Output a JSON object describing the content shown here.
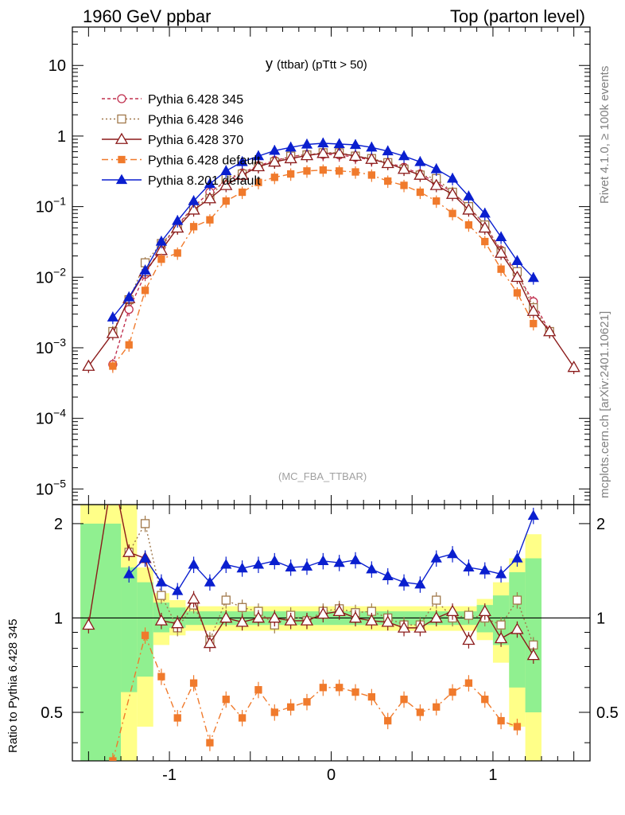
{
  "header": {
    "left": "1960 GeV ppbar",
    "right": "Top (parton level)"
  },
  "side_labels": {
    "rivet": "Rivet 4.1.0, ≥ 100k events",
    "mcplots": "mcplots.cern.ch [arXiv:2401.10621]"
  },
  "chart_data": {
    "type": "line",
    "title_main": "y",
    "title_sub": "(ttbar) (pTtt > 50)",
    "analysis": "(MC_FBA_TTBAR)",
    "ratio_ylabel": "Ratio to Pythia 6.428 345",
    "xlim": [
      -1.6,
      1.6
    ],
    "ylim_main": [
      6e-06,
      35
    ],
    "ylim_ratio": [
      0.35,
      2.3
    ],
    "x_ticks": [
      "-1",
      "0",
      "1"
    ],
    "y_ticks_main": [
      {
        "v": 10,
        "b": "10",
        "e": ""
      },
      {
        "v": 1,
        "b": "1",
        "e": ""
      },
      {
        "v": 0.1,
        "b": "10",
        "e": "−1"
      },
      {
        "v": 0.01,
        "b": "10",
        "e": "−2"
      },
      {
        "v": 0.001,
        "b": "10",
        "e": "−3"
      },
      {
        "v": 0.0001,
        "b": "10",
        "e": "−4"
      },
      {
        "v": 1e-05,
        "b": "10",
        "e": "−5"
      }
    ],
    "y_ticks_ratio": [
      "2",
      "1",
      "0.5"
    ],
    "x": [
      -1.5,
      -1.35,
      -1.25,
      -1.15,
      -1.05,
      -0.95,
      -0.85,
      -0.75,
      -0.65,
      -0.55,
      -0.45,
      -0.35,
      -0.25,
      -0.15,
      -0.05,
      0.05,
      0.15,
      0.25,
      0.35,
      0.45,
      0.55,
      0.65,
      0.75,
      0.85,
      0.95,
      1.05,
      1.15,
      1.25,
      1.35,
      1.5
    ],
    "band_yellow": [
      [
        -1.55,
        -1.3,
        0.35,
        2.3
      ],
      [
        -1.3,
        -1.2,
        0.35,
        2.3
      ],
      [
        -1.2,
        -1.1,
        0.45,
        1.45
      ],
      [
        -1.1,
        -1.0,
        0.82,
        1.2
      ],
      [
        -1.0,
        -0.9,
        0.88,
        1.14
      ],
      [
        -0.9,
        0.9,
        0.91,
        1.09
      ],
      [
        0.9,
        1.0,
        0.85,
        1.15
      ],
      [
        1.0,
        1.1,
        0.72,
        1.3
      ],
      [
        1.1,
        1.2,
        0.45,
        1.55
      ],
      [
        1.2,
        1.3,
        0.35,
        1.85
      ]
    ],
    "band_green": [
      [
        -1.55,
        -1.3,
        0.35,
        2.0
      ],
      [
        -1.3,
        -1.2,
        0.58,
        1.45
      ],
      [
        -1.2,
        -1.1,
        0.65,
        1.3
      ],
      [
        -1.1,
        -1.0,
        0.9,
        1.12
      ],
      [
        -1.0,
        -0.9,
        0.93,
        1.08
      ],
      [
        -0.9,
        0.9,
        0.95,
        1.05
      ],
      [
        0.9,
        1.0,
        0.9,
        1.1
      ],
      [
        1.0,
        1.1,
        0.82,
        1.18
      ],
      [
        1.1,
        1.2,
        0.6,
        1.4
      ],
      [
        1.2,
        1.3,
        0.5,
        1.55
      ]
    ],
    "series": [
      {
        "name": "Pythia 6.428 345",
        "color": "#c0304f",
        "dash": "4,3",
        "marker": "circle-open",
        "values": [
          null,
          0.00058,
          0.0035,
          0.011,
          0.027,
          0.055,
          0.1,
          0.16,
          0.23,
          0.3,
          0.38,
          0.45,
          0.51,
          0.55,
          0.55,
          0.54,
          0.5,
          0.46,
          0.42,
          0.36,
          0.29,
          0.22,
          0.16,
          0.1,
          0.055,
          0.024,
          0.011,
          0.0045,
          0.0017,
          null
        ],
        "ratio": [
          null,
          null,
          null,
          null,
          null,
          null,
          null,
          null,
          null,
          null,
          null,
          null,
          null,
          null,
          null,
          null,
          null,
          null,
          null,
          null,
          null,
          null,
          null,
          null,
          null,
          null,
          null,
          null,
          null,
          null
        ]
      },
      {
        "name": "Pythia 6.428 346",
        "color": "#a0784a",
        "dash": "2,3",
        "marker": "square-open",
        "values": [
          null,
          0.0017,
          0.0048,
          0.016,
          0.03,
          0.051,
          0.1,
          0.13,
          0.26,
          0.29,
          0.37,
          0.43,
          0.52,
          0.54,
          0.58,
          0.58,
          0.52,
          0.48,
          0.42,
          0.34,
          0.28,
          0.25,
          0.16,
          0.1,
          0.055,
          0.023,
          0.012,
          0.0037,
          0.0017,
          null
        ],
        "ratio": [
          null,
          null,
          1.62,
          2.0,
          1.18,
          0.93,
          1.1,
          0.85,
          1.14,
          1.08,
          1.05,
          0.95,
          1.02,
          0.98,
          1.05,
          1.07,
          1.04,
          1.05,
          1.0,
          0.95,
          0.95,
          1.14,
          1.0,
          1.02,
          1.0,
          0.95,
          1.14,
          0.82,
          null,
          null
        ]
      },
      {
        "name": "Pythia 6.428 370",
        "color": "#8b1a1a",
        "dash": "",
        "marker": "triangle-open",
        "values": [
          0.00055,
          0.0016,
          0.005,
          0.012,
          0.024,
          0.05,
          0.09,
          0.13,
          0.2,
          0.28,
          0.37,
          0.43,
          0.48,
          0.53,
          0.57,
          0.57,
          0.52,
          0.47,
          0.41,
          0.34,
          0.28,
          0.2,
          0.15,
          0.09,
          0.05,
          0.022,
          0.01,
          0.0033,
          0.0017,
          0.00053
        ],
        "ratio": [
          0.95,
          2.9,
          1.62,
          1.55,
          0.98,
          0.96,
          1.15,
          0.83,
          1.0,
          0.97,
          1.0,
          1.0,
          0.98,
          0.98,
          1.03,
          1.05,
          1.0,
          0.98,
          0.97,
          0.93,
          0.93,
          1.0,
          1.05,
          0.85,
          1.05,
          0.86,
          0.92,
          0.76,
          null,
          null
        ]
      },
      {
        "name": "Pythia 6.428 default",
        "color": "#f07a2c",
        "dash": "8,4,2,4",
        "marker": "square-filled",
        "values": [
          null,
          0.00055,
          0.0011,
          0.0065,
          0.018,
          0.022,
          0.052,
          0.065,
          0.12,
          0.16,
          0.22,
          0.26,
          0.29,
          0.32,
          0.33,
          0.32,
          0.31,
          0.28,
          0.23,
          0.2,
          0.16,
          0.12,
          0.08,
          0.055,
          0.032,
          0.013,
          0.006,
          0.0022,
          null,
          null
        ],
        "ratio": [
          null,
          0.35,
          null,
          0.88,
          0.65,
          0.48,
          0.62,
          0.4,
          0.55,
          0.48,
          0.59,
          0.5,
          0.52,
          0.54,
          0.6,
          0.6,
          0.58,
          0.56,
          0.47,
          0.55,
          0.5,
          0.52,
          0.58,
          0.62,
          0.55,
          0.47,
          0.45,
          null,
          null,
          null
        ]
      },
      {
        "name": "Pythia 8.201 default",
        "color": "#0a1fcf",
        "dash": "",
        "marker": "triangle-filled",
        "values": [
          null,
          0.0027,
          0.0052,
          0.0125,
          0.032,
          0.063,
          0.12,
          0.21,
          0.32,
          0.43,
          0.52,
          0.62,
          0.69,
          0.76,
          0.79,
          0.77,
          0.75,
          0.69,
          0.61,
          0.52,
          0.43,
          0.34,
          0.25,
          0.14,
          0.08,
          0.037,
          0.017,
          0.0098,
          null,
          null
        ],
        "ratio": [
          null,
          null,
          1.38,
          1.55,
          1.3,
          1.22,
          1.48,
          1.3,
          1.48,
          1.44,
          1.48,
          1.52,
          1.45,
          1.46,
          1.52,
          1.5,
          1.53,
          1.43,
          1.36,
          1.3,
          1.28,
          1.55,
          1.6,
          1.45,
          1.42,
          1.38,
          1.55,
          2.12,
          null,
          null
        ]
      }
    ]
  }
}
